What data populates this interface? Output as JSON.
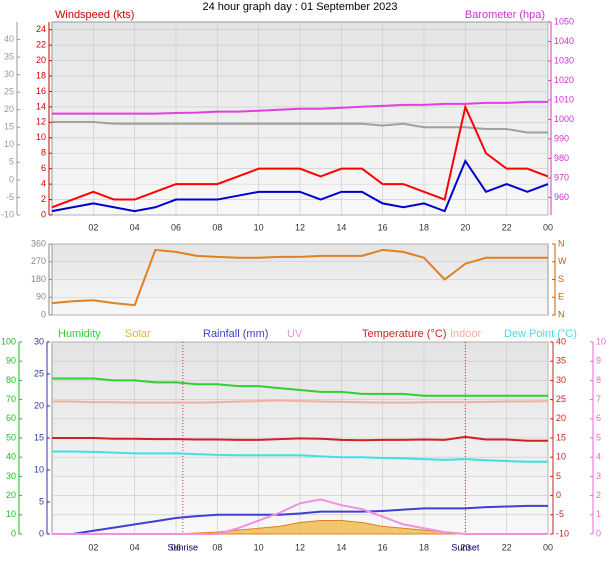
{
  "chart_data": [
    {
      "type": "line",
      "title": "24 hour graph day : 01 September 2023",
      "ylabel": "Windspeed (kts)",
      "y2label": "Barometer (hpa)",
      "x": [
        0,
        1,
        2,
        3,
        4,
        5,
        6,
        7,
        8,
        9,
        10,
        11,
        12,
        13,
        14,
        15,
        16,
        17,
        18,
        19,
        20,
        21,
        22,
        23,
        24
      ],
      "xlim": [
        0,
        24
      ],
      "xticks": [
        {
          "value": 2,
          "label": "02"
        },
        {
          "value": 4,
          "label": "04"
        },
        {
          "value": 6,
          "label": "06"
        },
        {
          "value": 8,
          "label": "08"
        },
        10,
        12,
        14,
        16,
        18,
        20,
        22,
        {
          "value": 24,
          "label": "00"
        }
      ],
      "ylim": [
        0,
        25
      ],
      "yticks": [
        0,
        2,
        4,
        6,
        8,
        10,
        12,
        14,
        16,
        18,
        20,
        22,
        24
      ],
      "ycolor": "#cc0000",
      "y2lim": [
        951,
        1050
      ],
      "y2ticks": [
        960,
        970,
        980,
        990,
        1000,
        1010,
        1020,
        1030,
        1040,
        1050
      ],
      "y2color": "#cc33cc",
      "y3lim": [
        -10,
        45
      ],
      "y3ticks": [
        -10,
        -5,
        0,
        5,
        10,
        15,
        20,
        25,
        30,
        35,
        40
      ],
      "y3color": "#999999",
      "grid": true,
      "series": [
        {
          "color": "#a0a0a0",
          "axis": "y3",
          "values": [
            16.5,
            16.5,
            16.5,
            16,
            16,
            16,
            16,
            16,
            16,
            16,
            16,
            16,
            16,
            16,
            16,
            16,
            15.5,
            16,
            15,
            15,
            15,
            14.5,
            14.5,
            13.5,
            13.5
          ]
        },
        {
          "color": "#e040e0",
          "axis": "y2",
          "values": [
            1003,
            1003,
            1003,
            1003,
            1003,
            1003,
            1003.3,
            1003.5,
            1004,
            1004,
            1004.5,
            1005,
            1005.5,
            1005.5,
            1006,
            1006.5,
            1007,
            1007.5,
            1007.5,
            1008,
            1008,
            1008.5,
            1008.5,
            1009,
            1009
          ]
        },
        {
          "color": "#ff0000",
          "axis": "y",
          "values": [
            1,
            2,
            3,
            2,
            2,
            3,
            4,
            4,
            4,
            5,
            6,
            6,
            6,
            5,
            6,
            6,
            4,
            4,
            3,
            2,
            14,
            8,
            6,
            6,
            5
          ]
        },
        {
          "color": "#0000cc",
          "axis": "y",
          "values": [
            0.5,
            1,
            1.5,
            1,
            0.5,
            1,
            2,
            2,
            2,
            2.5,
            3,
            3,
            3,
            2,
            3,
            3,
            1.5,
            1,
            1.5,
            0.5,
            7,
            3,
            4,
            3,
            4
          ]
        }
      ]
    },
    {
      "type": "line",
      "x": [
        0,
        1,
        2,
        3,
        4,
        5,
        6,
        7,
        8,
        9,
        10,
        11,
        12,
        13,
        14,
        15,
        16,
        17,
        18,
        19,
        20,
        21,
        22,
        23,
        24
      ],
      "xlim": [
        0,
        24
      ],
      "ylim": [
        0,
        360
      ],
      "yticks": [
        0,
        90,
        180,
        270,
        360
      ],
      "ycolor": "#888888",
      "y2lim": [
        0,
        360
      ],
      "y2ticks": [
        {
          "value": 0,
          "label": "N"
        },
        {
          "value": 90,
          "label": "E"
        },
        {
          "value": 180,
          "label": "S"
        },
        {
          "value": 270,
          "label": "W"
        },
        {
          "value": 360,
          "label": "N"
        }
      ],
      "y2color": "#c06000",
      "grid": true,
      "series": [
        {
          "color": "#e08020",
          "axis": "y",
          "values": [
            60,
            70,
            75,
            60,
            50,
            330,
            320,
            300,
            295,
            290,
            290,
            295,
            295,
            300,
            300,
            300,
            330,
            320,
            290,
            180,
            260,
            290,
            290,
            290,
            290
          ]
        }
      ]
    },
    {
      "type": "line",
      "x": [
        0,
        1,
        2,
        3,
        4,
        5,
        6,
        7,
        8,
        9,
        10,
        11,
        12,
        13,
        14,
        15,
        16,
        17,
        18,
        19,
        20,
        21,
        22,
        23,
        24
      ],
      "xlim": [
        0,
        24
      ],
      "xticks": [
        {
          "value": 2,
          "label": "02"
        },
        {
          "value": 4,
          "label": "04"
        },
        {
          "value": 6,
          "label": "06"
        },
        {
          "value": 8,
          "label": "08"
        },
        10,
        12,
        14,
        16,
        18,
        20,
        22,
        {
          "value": 24,
          "label": "00"
        }
      ],
      "ylim": [
        0,
        100
      ],
      "yticks": [
        0,
        10,
        20,
        30,
        40,
        50,
        60,
        70,
        80,
        90,
        100
      ],
      "ycolor": "#22bb22",
      "y3lim": [
        0,
        30
      ],
      "y3ticks": [
        0,
        5,
        10,
        15,
        20,
        25,
        30
      ],
      "y3color": "#3333aa",
      "y2lim": [
        -10,
        40
      ],
      "y2ticks": [
        -10,
        -5,
        0,
        5,
        10,
        15,
        20,
        25,
        30,
        35,
        40
      ],
      "y2color": "#cc2222",
      "y4lim": [
        0,
        10
      ],
      "y4ticks": [
        0,
        1,
        2,
        3,
        4,
        5,
        6,
        7,
        8,
        9,
        10
      ],
      "y4color": "#ee66cc",
      "grid": true,
      "annotations": [
        {
          "text": "Sunrise",
          "x": 6.33
        },
        {
          "text": "Sunset",
          "x": 20
        }
      ],
      "series": [
        {
          "name": "Humidity",
          "color": "#30d030",
          "axis": "y",
          "values": [
            81,
            81,
            81,
            80,
            80,
            79,
            79,
            78,
            78,
            77,
            77,
            76,
            75,
            74,
            74,
            73,
            73,
            73,
            72,
            72,
            72,
            72,
            72,
            72,
            72
          ]
        },
        {
          "name": "Solar",
          "color": "#f0b030",
          "axis": "y",
          "area": true,
          "values": [
            0,
            0,
            0,
            0,
            0,
            0,
            0,
            0.5,
            1,
            2,
            3,
            4,
            6,
            7,
            7,
            6,
            4,
            3,
            2,
            1,
            0,
            0,
            0,
            0,
            0
          ]
        },
        {
          "name": "Rainfall (mm)",
          "color": "#4040d0",
          "axis": "y3",
          "values": [
            0,
            0,
            0.5,
            1,
            1.5,
            2,
            2.5,
            2.8,
            3,
            3,
            3,
            3,
            3.2,
            3.5,
            3.5,
            3.5,
            3.6,
            3.8,
            4,
            4,
            4,
            4.2,
            4.3,
            4.4,
            4.4
          ]
        },
        {
          "name": "UV",
          "color": "#f090e0",
          "axis": "y4",
          "values": [
            0,
            0,
            0,
            0,
            0,
            0,
            0,
            0,
            0,
            0.3,
            0.7,
            1.1,
            1.6,
            1.8,
            1.5,
            1.3,
            0.9,
            0.5,
            0.3,
            0.1,
            0,
            0,
            0,
            0,
            0
          ]
        },
        {
          "name": "Temperature (°C)",
          "color": "#d02020",
          "axis": "y2",
          "values": [
            15,
            15,
            15,
            14.8,
            14.8,
            14.7,
            14.7,
            14.6,
            14.6,
            14.5,
            14.5,
            14.7,
            14.9,
            14.8,
            14.5,
            14.4,
            14.5,
            14.5,
            14.6,
            14.5,
            15.3,
            14.6,
            14.6,
            14.3,
            14.3
          ]
        },
        {
          "name": "Indoor",
          "color": "#f0b0a0",
          "axis": "y2",
          "values": [
            24.5,
            24.5,
            24.3,
            24.3,
            24.2,
            24.2,
            24.2,
            24.2,
            24.3,
            24.5,
            24.6,
            24.8,
            24.6,
            24.5,
            24.4,
            24.3,
            24.2,
            24.2,
            24.3,
            24.3,
            24.3,
            24.4,
            24.5,
            24.5,
            24.6
          ]
        },
        {
          "name": "Dew Point (°C)",
          "color": "#40e0e0",
          "axis": "y2",
          "values": [
            11.5,
            11.5,
            11.4,
            11.2,
            11,
            11,
            11,
            10.8,
            10.6,
            10.5,
            10.5,
            10.5,
            10.5,
            10.2,
            10,
            10,
            9.8,
            9.7,
            9.5,
            9.3,
            9.5,
            9.2,
            9,
            8.8,
            8.8
          ]
        }
      ]
    }
  ]
}
